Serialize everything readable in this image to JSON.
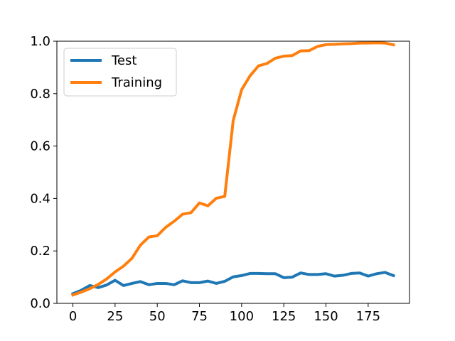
{
  "chart_data": {
    "type": "line",
    "title": "",
    "xlabel": "",
    "ylabel": "",
    "xlim": [
      -9.5,
      199.5
    ],
    "ylim": [
      0,
      1
    ],
    "x_ticks": [
      0,
      25,
      50,
      75,
      100,
      125,
      150,
      175
    ],
    "x_tick_labels": [
      "0",
      "25",
      "50",
      "75",
      "100",
      "125",
      "150",
      "175"
    ],
    "y_ticks": [
      0,
      0.2,
      0.4,
      0.6,
      0.8,
      1.0
    ],
    "y_tick_labels": [
      "0.0",
      "0.2",
      "0.4",
      "0.6",
      "0.8",
      "1.0"
    ],
    "grid": false,
    "legend_position": "top-left",
    "x": [
      0,
      5,
      10,
      15,
      20,
      25,
      30,
      35,
      40,
      45,
      50,
      55,
      60,
      65,
      70,
      75,
      80,
      85,
      90,
      95,
      100,
      105,
      110,
      115,
      120,
      125,
      130,
      135,
      140,
      145,
      150,
      155,
      160,
      165,
      170,
      175,
      180,
      185,
      190
    ],
    "series": [
      {
        "name": "Test",
        "color": "#1f77b4",
        "values": [
          0.037,
          0.05,
          0.068,
          0.06,
          0.07,
          0.088,
          0.068,
          0.076,
          0.083,
          0.071,
          0.076,
          0.076,
          0.071,
          0.086,
          0.079,
          0.079,
          0.085,
          0.076,
          0.084,
          0.101,
          0.106,
          0.114,
          0.114,
          0.113,
          0.113,
          0.098,
          0.1,
          0.116,
          0.11,
          0.11,
          0.113,
          0.104,
          0.107,
          0.114,
          0.116,
          0.104,
          0.113,
          0.118,
          0.106
        ]
      },
      {
        "name": "Training",
        "color": "#ff7f0e",
        "values": [
          0.032,
          0.043,
          0.056,
          0.072,
          0.093,
          0.12,
          0.142,
          0.172,
          0.222,
          0.253,
          0.258,
          0.29,
          0.313,
          0.34,
          0.346,
          0.383,
          0.372,
          0.401,
          0.408,
          0.697,
          0.815,
          0.868,
          0.906,
          0.915,
          0.935,
          0.943,
          0.945,
          0.963,
          0.964,
          0.98,
          0.987,
          0.988,
          0.99,
          0.991,
          0.993,
          0.993,
          0.994,
          0.993,
          0.986
        ]
      }
    ]
  }
}
